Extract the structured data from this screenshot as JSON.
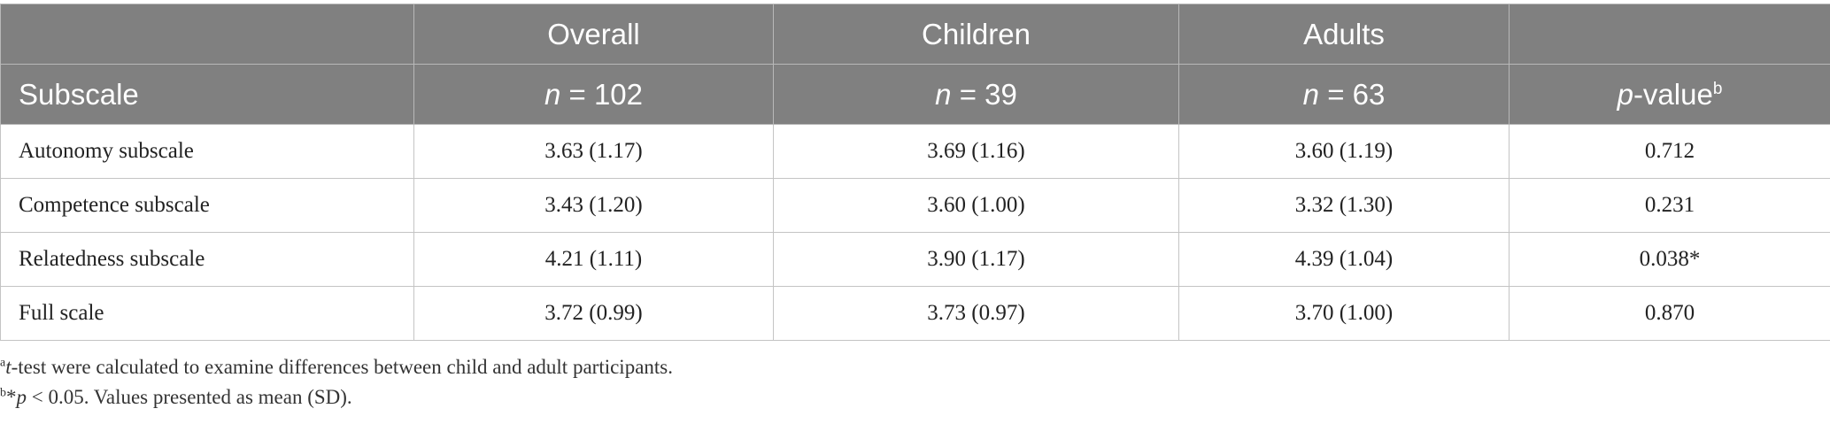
{
  "table": {
    "header_row1": [
      "",
      "Overall",
      "Children",
      "Adults",
      ""
    ],
    "subscale_label": "Subscale",
    "n_prefix": "n",
    "n_values": [
      "= 102",
      "= 39",
      "= 63"
    ],
    "pvalue_prefix": "p",
    "pvalue_label": "-value",
    "pvalue_marker": "b",
    "rows": [
      {
        "label": "Autonomy subscale",
        "overall": "3.63 (1.17)",
        "children": "3.69 (1.16)",
        "adults": "3.60 (1.19)",
        "p": "0.712"
      },
      {
        "label": "Competence subscale",
        "overall": "3.43 (1.20)",
        "children": "3.60 (1.00)",
        "adults": "3.32 (1.30)",
        "p": "0.231"
      },
      {
        "label": "Relatedness subscale",
        "overall": "4.21 (1.11)",
        "children": "3.90 (1.17)",
        "adults": "4.39 (1.04)",
        "p": "0.038*"
      },
      {
        "label": "Full scale",
        "overall": "3.72 (0.99)",
        "children": "3.73 (0.97)",
        "adults": "3.70 (1.00)",
        "p": "0.870"
      }
    ]
  },
  "footnotes": {
    "a_marker": "a",
    "a_italic": "t",
    "a_text": "-test were calculated to examine differences between child and adult participants.",
    "b_marker": "b",
    "b_star": "*",
    "b_italic": "p",
    "b_text": " < 0.05. Values presented as mean (SD)."
  }
}
